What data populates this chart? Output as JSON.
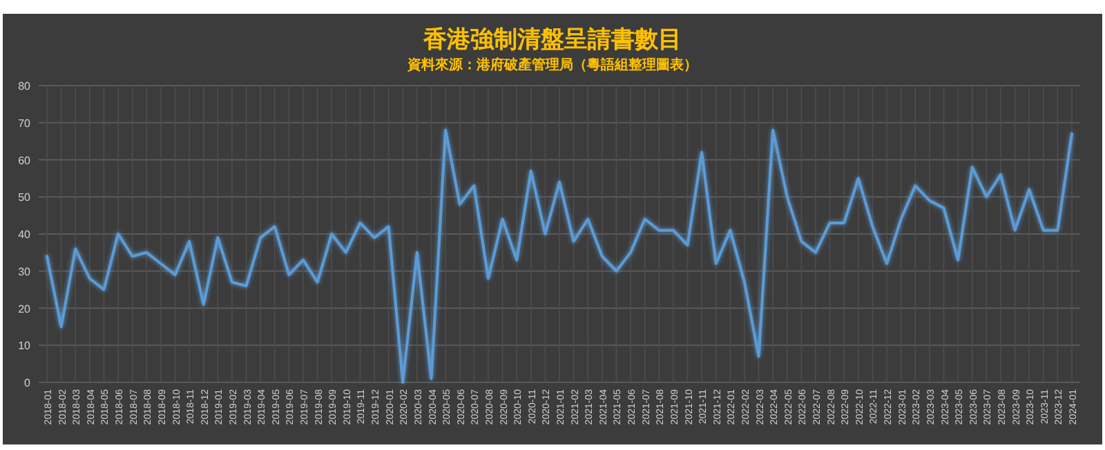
{
  "chart_data": {
    "type": "line",
    "title": "香港強制清盤呈請書數目",
    "subtitle": "資料來源：港府破產管理局（粵語組整理圖表）",
    "categories": [
      "2018-01",
      "2018-02",
      "2018-03",
      "2018-04",
      "2018-05",
      "2018-06",
      "2018-07",
      "2018-08",
      "2018-09",
      "2018-10",
      "2018-11",
      "2018-12",
      "2019-01",
      "2019-02",
      "2019-03",
      "2019-04",
      "2019-05",
      "2019-06",
      "2019-07",
      "2019-08",
      "2019-09",
      "2019-10",
      "2019-11",
      "2019-12",
      "2020-01",
      "2020-02",
      "2020-03",
      "2020-04",
      "2020-05",
      "2020-06",
      "2020-07",
      "2020-08",
      "2020-09",
      "2020-10",
      "2020-11",
      "2020-12",
      "2021-01",
      "2021-02",
      "2021-03",
      "2021-04",
      "2021-05",
      "2021-06",
      "2021-07",
      "2021-08",
      "2021-09",
      "2021-10",
      "2021-11",
      "2021-12",
      "2022-01",
      "2022-02",
      "2022-03",
      "2022-04",
      "2022-05",
      "2022-06",
      "2022-07",
      "2022-08",
      "2022-09",
      "2022-10",
      "2022-11",
      "2022-12",
      "2023-01",
      "2023-02",
      "2023-03",
      "2023-04",
      "2023-05",
      "2023-06",
      "2023-07",
      "2023-08",
      "2023-09",
      "2023-10",
      "2023-11",
      "2023-12",
      "2024-01"
    ],
    "series": [
      {
        "color": "#5b9bd5",
        "values": [
          34,
          15,
          36,
          28,
          25,
          40,
          34,
          35,
          32,
          29,
          38,
          21,
          39,
          27,
          26,
          39,
          42,
          29,
          33,
          27,
          40,
          35,
          43,
          39,
          42,
          0,
          35,
          1,
          68,
          48,
          53,
          28,
          44,
          33,
          57,
          40,
          54,
          38,
          44,
          34,
          30,
          35,
          44,
          41,
          41,
          37,
          62,
          32,
          41,
          27,
          7,
          68,
          50,
          38,
          35,
          43,
          43,
          55,
          42,
          32,
          44,
          53,
          49,
          47,
          33,
          58,
          50,
          56,
          41,
          52,
          41,
          41,
          67
        ]
      }
    ],
    "ylim": [
      0,
      80
    ],
    "yticks": [
      0,
      10,
      20,
      30,
      40,
      50,
      60,
      70,
      80
    ],
    "grid": true,
    "marker": "none",
    "line_style": "solid"
  }
}
